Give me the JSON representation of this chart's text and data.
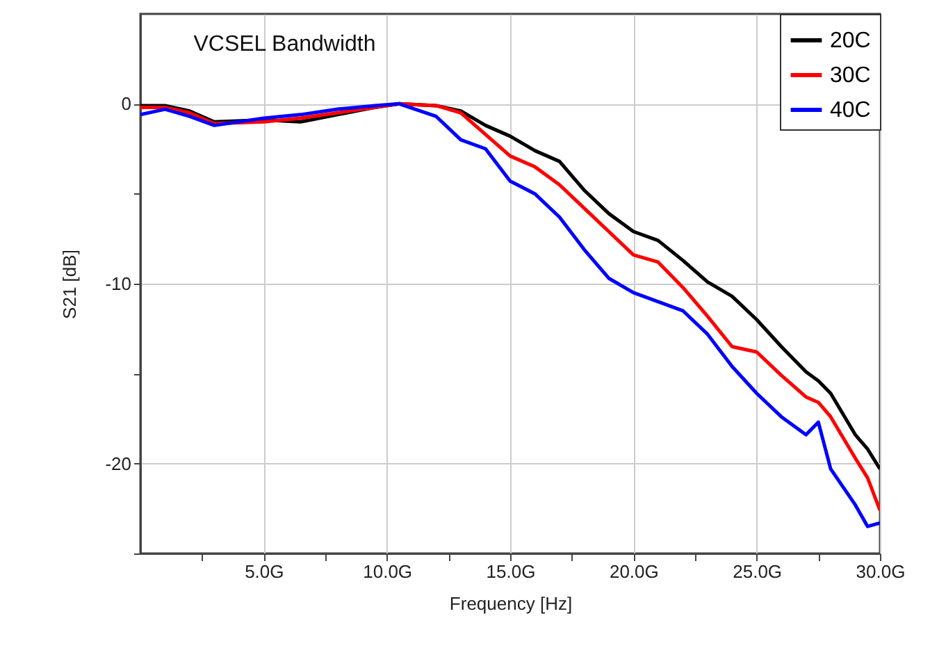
{
  "chart_data": {
    "type": "line",
    "title": "VCSEL Bandwidth",
    "xlabel": "Frequency [Hz]",
    "ylabel": "S21 [dB]",
    "x": [
      0,
      1,
      2,
      3,
      5,
      6.5,
      8,
      9.5,
      10.5,
      12,
      13,
      14,
      15,
      16,
      17,
      18,
      19,
      20,
      21,
      22,
      23,
      24,
      25,
      26,
      27,
      27.5,
      28,
      29,
      29.5,
      30
    ],
    "series": [
      {
        "name": "20C",
        "color": "#000000",
        "values": [
          -0.1,
          -0.1,
          -0.4,
          -1.0,
          -0.9,
          -1.0,
          -0.6,
          -0.2,
          0,
          -0.1,
          -0.4,
          -1.2,
          -1.8,
          -2.6,
          -3.2,
          -4.8,
          -6.1,
          -7.1,
          -7.6,
          -8.7,
          -9.9,
          -10.7,
          -12.0,
          -13.5,
          -14.9,
          -15.4,
          -16.1,
          -18.4,
          -19.2,
          -20.3
        ]
      },
      {
        "name": "30C",
        "color": "#ff0000",
        "values": [
          -0.2,
          -0.2,
          -0.5,
          -1.1,
          -1.0,
          -0.8,
          -0.5,
          -0.2,
          0,
          -0.1,
          -0.5,
          -1.7,
          -2.9,
          -3.5,
          -4.5,
          -5.8,
          -7.1,
          -8.4,
          -8.8,
          -10.2,
          -11.8,
          -13.5,
          -13.8,
          -15.1,
          -16.3,
          -16.6,
          -17.4,
          -19.7,
          -20.8,
          -22.6
        ]
      },
      {
        "name": "40C",
        "color": "#0000ff",
        "values": [
          -0.6,
          -0.3,
          -0.7,
          -1.2,
          -0.8,
          -0.6,
          -0.3,
          -0.1,
          0,
          -0.7,
          -2.0,
          -2.5,
          -4.3,
          -5.0,
          -6.3,
          -8.1,
          -9.7,
          -10.5,
          -11.0,
          -11.5,
          -12.8,
          -14.6,
          -16.1,
          -17.4,
          -18.4,
          -17.7,
          -20.3,
          -22.3,
          -23.5,
          -23.3
        ]
      }
    ],
    "xlim": [
      0,
      30
    ],
    "ylim": [
      -25,
      5
    ],
    "xticks": [
      {
        "value": 2.5,
        "label": null
      },
      {
        "value": 5,
        "label": "5.0G"
      },
      {
        "value": 7.5,
        "label": null
      },
      {
        "value": 10,
        "label": "10.0G"
      },
      {
        "value": 12.5,
        "label": null
      },
      {
        "value": 15,
        "label": "15.0G"
      },
      {
        "value": 17.5,
        "label": null
      },
      {
        "value": 20,
        "label": "20.0G"
      },
      {
        "value": 22.5,
        "label": null
      },
      {
        "value": 25,
        "label": "25.0G"
      },
      {
        "value": 27.5,
        "label": null
      },
      {
        "value": 30,
        "label": "30.0G"
      }
    ],
    "yticks": [
      {
        "value": -25,
        "label": null
      },
      -20,
      {
        "value": -15,
        "label": null
      },
      -10,
      {
        "value": -5,
        "label": null
      },
      0
    ],
    "grid": true,
    "legend": "top right",
    "line_style": "solid",
    "marker": "none"
  }
}
